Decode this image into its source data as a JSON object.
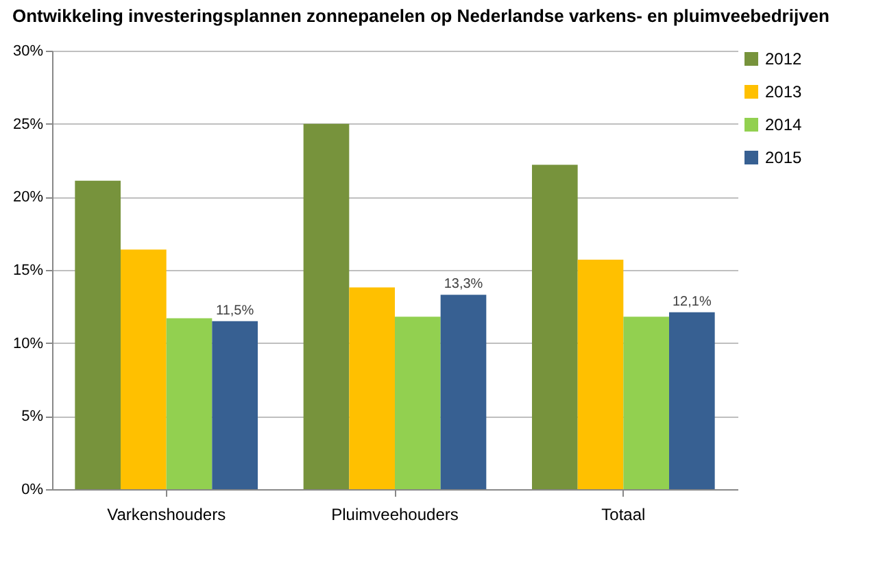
{
  "chart_data": {
    "type": "bar",
    "title": "Ontwikkeling investeringsplannen zonnepanelen op Nederlandse varkens- en pluimveebedrijven",
    "categories": [
      "Varkenshouders",
      "Pluimveehouders",
      "Totaal"
    ],
    "series": [
      {
        "name": "2012",
        "color": "#77933c",
        "values": [
          21.1,
          25.0,
          22.2
        ]
      },
      {
        "name": "2013",
        "color": "#ffc000",
        "values": [
          16.4,
          13.8,
          15.7
        ]
      },
      {
        "name": "2014",
        "color": "#92d050",
        "values": [
          11.7,
          11.8,
          11.8
        ]
      },
      {
        "name": "2015",
        "color": "#376092",
        "values": [
          11.5,
          13.3,
          12.1
        ],
        "value_labels": [
          "11,5%",
          "13,3%",
          "12,1%"
        ]
      }
    ],
    "ylim": [
      0,
      30
    ],
    "yticks": [
      {
        "value": 0,
        "label": "0%"
      },
      {
        "value": 5,
        "label": "5%"
      },
      {
        "value": 10,
        "label": "10%"
      },
      {
        "value": 15,
        "label": "15%"
      },
      {
        "value": 20,
        "label": "20%"
      },
      {
        "value": 25,
        "label": "25%"
      },
      {
        "value": 30,
        "label": "30%"
      }
    ],
    "grid": "y",
    "legend": "top right"
  }
}
